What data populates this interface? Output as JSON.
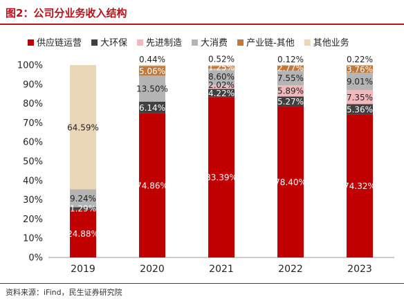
{
  "figure": {
    "title": "图2：公司分业务收入结构",
    "source": "资料来源：iFind，民生证券研究院"
  },
  "chart_data": {
    "type": "bar",
    "stacked": true,
    "categories": [
      "2019",
      "2020",
      "2021",
      "2022",
      "2023"
    ],
    "ylim": [
      0,
      100
    ],
    "yticks": [
      "0%",
      "10%",
      "20%",
      "30%",
      "40%",
      "50%",
      "60%",
      "70%",
      "80%",
      "90%",
      "100%"
    ],
    "legend_position": "top",
    "grid": false,
    "series": [
      {
        "name": "供应链运营",
        "color": "#c00000",
        "values": [
          24.88,
          74.86,
          83.39,
          78.4,
          74.32
        ],
        "labels": [
          "24.88%",
          "74.86%",
          "83.39%",
          "78.40%",
          "74.32%"
        ]
      },
      {
        "name": "大环保",
        "color": "#404040",
        "values": [
          1.29,
          6.14,
          4.22,
          5.27,
          5.36
        ],
        "labels": [
          "1.29%",
          "6.14%",
          "4.22%",
          "5.27%",
          "5.36%"
        ]
      },
      {
        "name": "先进制造",
        "color": "#f2b8bb",
        "values": [
          0,
          0,
          2.02,
          5.89,
          7.35
        ],
        "labels": [
          "",
          "",
          "2.02%",
          "5.89%",
          "7.35%"
        ]
      },
      {
        "name": "大消费",
        "color": "#b4b4b4",
        "values": [
          9.24,
          13.5,
          8.6,
          7.55,
          9.01
        ],
        "labels": [
          "9.24%",
          "13.50%",
          "8.60%",
          "7.55%",
          "9.01%"
        ]
      },
      {
        "name": "产业链-其他",
        "color": "#c0783c",
        "values": [
          0,
          5.06,
          1.25,
          2.77,
          3.76
        ],
        "labels": [
          "",
          "5.06%",
          "1.25%",
          "2.77%",
          "3.76%"
        ]
      },
      {
        "name": "其他业务",
        "color": "#ead7b7",
        "values": [
          64.59,
          0.44,
          0.52,
          0.12,
          0.22
        ],
        "labels": [
          "64.59%",
          "0.44%",
          "0.52%",
          "0.12%",
          "0.22%"
        ]
      }
    ]
  }
}
